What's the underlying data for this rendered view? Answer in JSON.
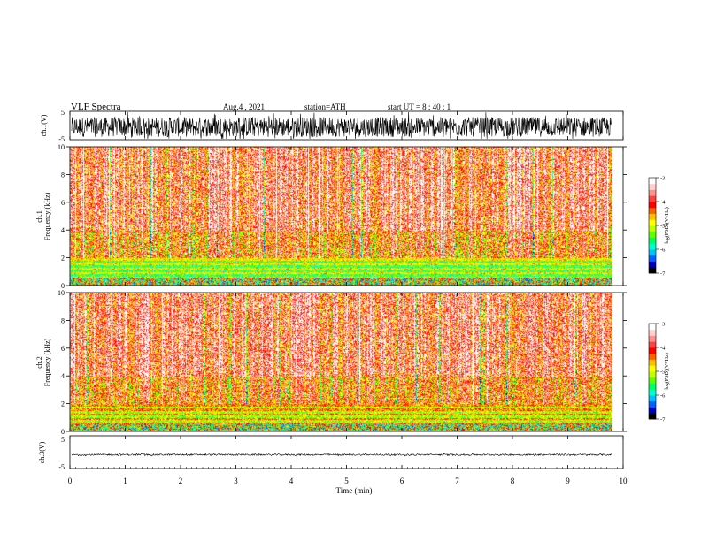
{
  "header": {
    "title": "VLF Spectra",
    "date": "Aug.4  , 2021",
    "station": "station=ATH",
    "start": "start UT =  8 : 40 : 1"
  },
  "colors": {
    "scale": [
      "#000000",
      "#0000c0",
      "#0060ff",
      "#00c0ff",
      "#00ffcc",
      "#00ff60",
      "#60ff00",
      "#c0ff00",
      "#ffff00",
      "#ffc000",
      "#ff6000",
      "#ff0000",
      "#ff4040",
      "#ff9090",
      "#ffd0d0",
      "#ffffff"
    ]
  },
  "chart_data": [
    {
      "type": "line",
      "name": "ch1-waveform",
      "ylabel": "ch.1(V)",
      "ylim": [
        -5,
        5
      ],
      "yticks": [
        "5",
        "-5"
      ],
      "xlim": [
        0,
        10
      ],
      "baseline": -0.5,
      "noise_amplitude": 3.5
    },
    {
      "type": "heatmap",
      "name": "ch1-spectrogram",
      "ylabel_top": "ch.1",
      "ylabel": "Frequency (kHz)",
      "ylim": [
        0,
        10
      ],
      "yticks": [
        "0",
        "2",
        "4",
        "6",
        "8",
        "10"
      ],
      "xlim": [
        0,
        10
      ],
      "data_end_min": 9.8,
      "colorbar": {
        "label": "log(PSD)(V²/Hz)",
        "ticks": [
          "-3",
          "-4",
          "-5",
          "-6",
          "-7"
        ],
        "range": [
          -7,
          -3
        ]
      }
    },
    {
      "type": "heatmap",
      "name": "ch2-spectrogram",
      "ylabel_top": "ch.2",
      "ylabel": "Frequency (kHz)",
      "ylim": [
        0,
        10
      ],
      "yticks": [
        "0",
        "2",
        "4",
        "6",
        "8",
        "10"
      ],
      "xlim": [
        0,
        10
      ],
      "data_end_min": 9.8,
      "colorbar": {
        "label": "log(PSD)(V²/Hz)",
        "ticks": [
          "-3",
          "-4",
          "-5",
          "-6",
          "-7"
        ],
        "range": [
          -7,
          -3
        ]
      }
    },
    {
      "type": "line",
      "name": "ch3-waveform",
      "ylabel": "ch.3(V)",
      "ylim": [
        -5,
        5
      ],
      "yticks": [
        "5",
        "-5"
      ],
      "xlim": [
        0,
        10
      ],
      "baseline": -0.8,
      "noise_amplitude": 0.25
    }
  ],
  "xaxis": {
    "label": "Time (min)",
    "ticks": [
      "0",
      "1",
      "2",
      "3",
      "4",
      "5",
      "6",
      "7",
      "8",
      "9",
      "10"
    ]
  }
}
